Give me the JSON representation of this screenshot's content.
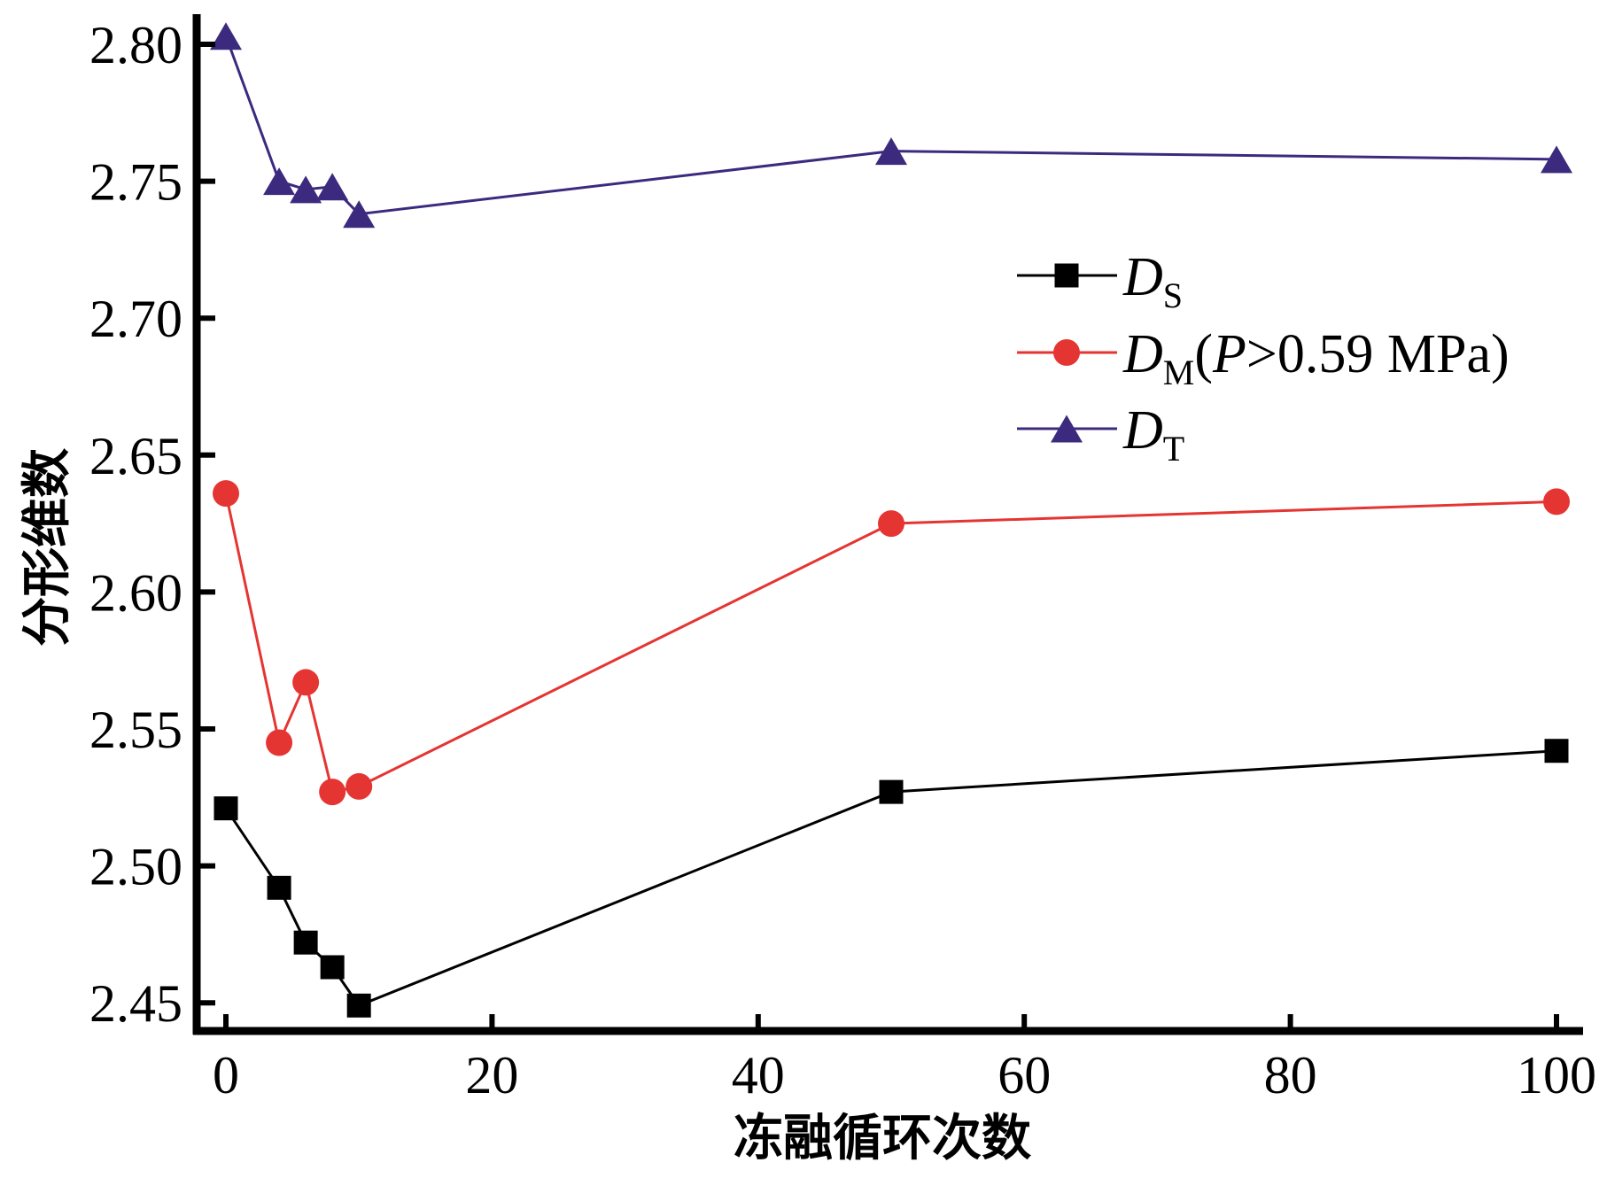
{
  "chart_data": {
    "type": "line",
    "title": "",
    "xlabel": "冻融循环次数",
    "ylabel": "分形维数",
    "xlim": [
      -2.3,
      102
    ],
    "ylim": [
      2.44,
      2.81
    ],
    "x_ticks": [
      0,
      20,
      40,
      60,
      80,
      100
    ],
    "x_tick_labels": [
      "0",
      "20",
      "40",
      "60",
      "80",
      "100"
    ],
    "y_ticks": [
      2.45,
      2.5,
      2.55,
      2.6,
      2.65,
      2.7,
      2.75,
      2.8
    ],
    "y_tick_labels": [
      "2.45",
      "2.50",
      "2.55",
      "2.60",
      "2.65",
      "2.70",
      "2.75",
      "2.80"
    ],
    "grid": false,
    "legend_position": "upper-right",
    "x": [
      0,
      4,
      6,
      8,
      10,
      50,
      100
    ],
    "series": [
      {
        "name": "DS",
        "legend": {
          "main": "D",
          "sub": "S",
          "rest": ""
        },
        "marker": "square",
        "color": "#000000",
        "values": [
          2.521,
          2.492,
          2.472,
          2.463,
          2.449,
          2.527,
          2.542
        ]
      },
      {
        "name": "DM(P>0.59 MPa)",
        "legend": {
          "main": "D",
          "sub": "M",
          "rest_open": "(",
          "rest_italic": "P",
          "rest": ">0.59 MPa)"
        },
        "marker": "circle",
        "color": "#e53532",
        "values": [
          2.636,
          2.545,
          2.567,
          2.527,
          2.529,
          2.625,
          2.633
        ]
      },
      {
        "name": "DT",
        "legend": {
          "main": "D",
          "sub": "T",
          "rest": ""
        },
        "marker": "triangle",
        "color": "#3c2a7e",
        "values": [
          2.803,
          2.75,
          2.747,
          2.748,
          2.738,
          2.761,
          2.758
        ]
      }
    ]
  }
}
